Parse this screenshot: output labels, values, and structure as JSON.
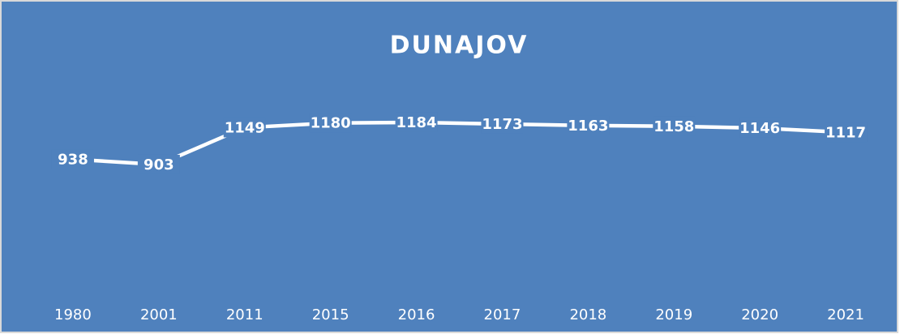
{
  "chart_data": {
    "type": "line",
    "title": "DUNAJOV",
    "categories": [
      "1980",
      "2001",
      "2011",
      "2015",
      "2016",
      "2017",
      "2018",
      "2019",
      "2020",
      "2021"
    ],
    "values": [
      938,
      903,
      1149,
      1180,
      1184,
      1173,
      1163,
      1158,
      1146,
      1117
    ],
    "color": "#ffffff",
    "background": "#4f81bd",
    "ylim": [
      0,
      1400
    ]
  }
}
